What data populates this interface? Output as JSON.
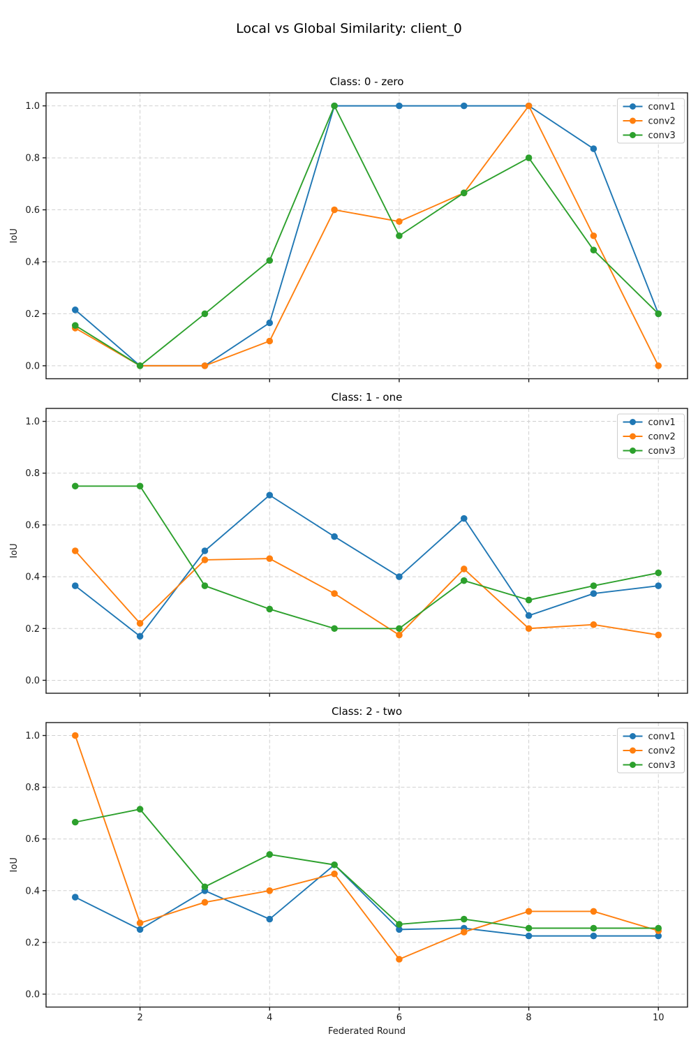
{
  "figure_title": "Local vs Global Similarity: client_0",
  "chart_data": [
    {
      "type": "line",
      "title": "Class: 0 - zero",
      "xlabel": "",
      "ylabel": "IoU",
      "x": [
        1,
        2,
        3,
        4,
        5,
        6,
        7,
        8,
        9,
        10
      ],
      "xticks": [
        2,
        4,
        6,
        8,
        10
      ],
      "yticks": [
        "0.0",
        "0.2",
        "0.4",
        "0.6",
        "0.8",
        "1.0"
      ],
      "xlim": [
        0.55,
        10.45
      ],
      "ylim": [
        -0.05,
        1.05
      ],
      "grid": true,
      "legend_position": "upper right",
      "series": [
        {
          "name": "conv1",
          "color": "#1f77b4",
          "values": [
            0.215,
            0.0,
            0.0,
            0.165,
            1.0,
            1.0,
            1.0,
            1.0,
            0.835,
            0.2
          ]
        },
        {
          "name": "conv2",
          "color": "#ff7f0e",
          "values": [
            0.145,
            0.0,
            0.0,
            0.095,
            0.6,
            0.555,
            0.665,
            1.0,
            0.5,
            0.0
          ]
        },
        {
          "name": "conv3",
          "color": "#2ca02c",
          "values": [
            0.155,
            0.0,
            0.2,
            0.405,
            1.0,
            0.5,
            0.665,
            0.8,
            0.445,
            0.2
          ]
        }
      ]
    },
    {
      "type": "line",
      "title": "Class: 1 - one",
      "xlabel": "",
      "ylabel": "IoU",
      "x": [
        1,
        2,
        3,
        4,
        5,
        6,
        7,
        8,
        9,
        10
      ],
      "xticks": [
        2,
        4,
        6,
        8,
        10
      ],
      "yticks": [
        "0.0",
        "0.2",
        "0.4",
        "0.6",
        "0.8",
        "1.0"
      ],
      "xlim": [
        0.55,
        10.45
      ],
      "ylim": [
        -0.05,
        1.05
      ],
      "grid": true,
      "legend_position": "upper right",
      "series": [
        {
          "name": "conv1",
          "color": "#1f77b4",
          "values": [
            0.365,
            0.17,
            0.5,
            0.715,
            0.555,
            0.4,
            0.625,
            0.25,
            0.335,
            0.365
          ]
        },
        {
          "name": "conv2",
          "color": "#ff7f0e",
          "values": [
            0.5,
            0.22,
            0.465,
            0.47,
            0.335,
            0.175,
            0.43,
            0.2,
            0.215,
            0.175
          ]
        },
        {
          "name": "conv3",
          "color": "#2ca02c",
          "values": [
            0.75,
            0.75,
            0.365,
            0.275,
            0.2,
            0.2,
            0.385,
            0.31,
            0.365,
            0.415
          ]
        }
      ]
    },
    {
      "type": "line",
      "title": "Class: 2 - two",
      "xlabel": "Federated Round",
      "ylabel": "IoU",
      "x": [
        1,
        2,
        3,
        4,
        5,
        6,
        7,
        8,
        9,
        10
      ],
      "xticks": [
        2,
        4,
        6,
        8,
        10
      ],
      "yticks": [
        "0.0",
        "0.2",
        "0.4",
        "0.6",
        "0.8",
        "1.0"
      ],
      "xlim": [
        0.55,
        10.45
      ],
      "ylim": [
        -0.05,
        1.05
      ],
      "grid": true,
      "legend_position": "upper right",
      "series": [
        {
          "name": "conv1",
          "color": "#1f77b4",
          "values": [
            0.375,
            0.25,
            0.4,
            0.29,
            0.5,
            0.25,
            0.255,
            0.225,
            0.225,
            0.225
          ]
        },
        {
          "name": "conv2",
          "color": "#ff7f0e",
          "values": [
            1.0,
            0.275,
            0.355,
            0.4,
            0.465,
            0.135,
            0.24,
            0.32,
            0.32,
            0.245
          ]
        },
        {
          "name": "conv3",
          "color": "#2ca02c",
          "values": [
            0.665,
            0.715,
            0.415,
            0.54,
            0.5,
            0.27,
            0.29,
            0.255,
            0.255,
            0.255
          ]
        }
      ]
    }
  ]
}
